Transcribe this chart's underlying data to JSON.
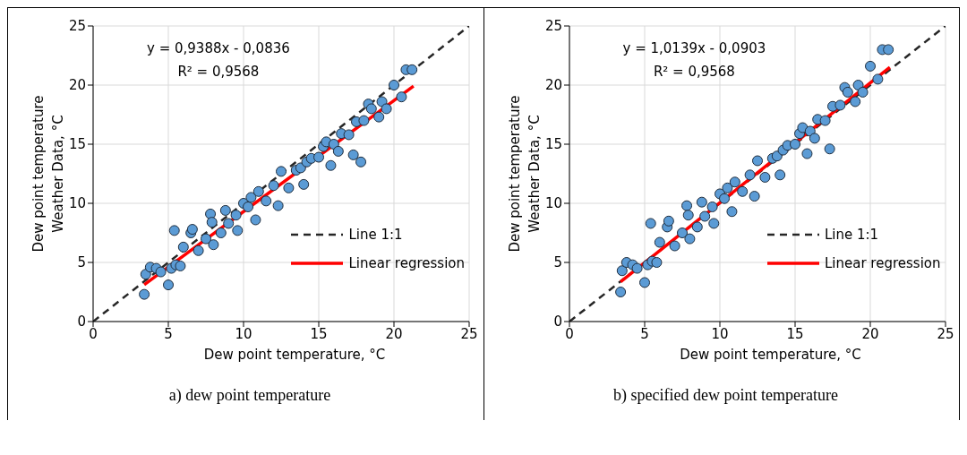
{
  "chart_data": [
    {
      "type": "scatter",
      "title": "a) dew point temperature",
      "xlabel": "Dew point temperature, °C",
      "ylabel": "Dew point temperature Weather Data, °C",
      "annotations": [
        "y = 0,9388x - 0,0836",
        "R² = 0,9568"
      ],
      "xlim": [
        0,
        25
      ],
      "ylim": [
        0,
        25
      ],
      "xticks": [
        0,
        5,
        10,
        15,
        20,
        25
      ],
      "yticks": [
        0,
        5,
        10,
        15,
        20,
        25
      ],
      "grid": true,
      "legend": "bottom right",
      "series": [
        {
          "marker": "circle",
          "color": "#5b9bd5",
          "x": [
            3.4,
            3.5,
            3.8,
            4.2,
            4.5,
            5.0,
            5.2,
            5.4,
            5.5,
            5.8,
            6.0,
            6.5,
            6.6,
            7.0,
            7.5,
            7.8,
            7.9,
            8.0,
            8.5,
            8.8,
            9.0,
            9.5,
            9.6,
            10.0,
            10.3,
            10.5,
            10.8,
            11.0,
            11.5,
            12.0,
            12.3,
            12.5,
            13.0,
            13.5,
            13.8,
            14.0,
            14.2,
            14.5,
            15.0,
            15.3,
            15.5,
            15.8,
            16.0,
            16.3,
            16.5,
            17.0,
            17.3,
            17.5,
            17.8,
            18.0,
            18.3,
            18.5,
            19.0,
            19.2,
            19.5,
            20.0,
            20.5,
            20.8,
            21.2
          ],
          "values": [
            2.3,
            4.0,
            4.6,
            4.5,
            4.2,
            3.1,
            4.5,
            7.7,
            4.8,
            4.7,
            6.3,
            7.5,
            7.8,
            6.0,
            7.0,
            9.1,
            8.4,
            6.5,
            7.5,
            9.4,
            8.3,
            9.0,
            7.7,
            10.0,
            9.7,
            10.5,
            8.6,
            11.0,
            10.2,
            11.5,
            9.8,
            12.7,
            11.3,
            12.8,
            13.0,
            11.6,
            13.5,
            13.8,
            13.9,
            14.8,
            15.2,
            13.2,
            15.0,
            14.4,
            15.9,
            15.8,
            14.1,
            16.9,
            13.5,
            17.0,
            18.4,
            18.0,
            17.3,
            18.6,
            18.0,
            20.0,
            19.0,
            21.3,
            21.3
          ]
        },
        {
          "type": "line",
          "name": "Line 1:1",
          "color": "#262626",
          "line_style": "dashed",
          "x": [
            0,
            25
          ],
          "values": [
            0,
            25
          ]
        },
        {
          "type": "line",
          "name": "Linear regression",
          "color": "#ff0000",
          "line_style": "solid",
          "x": [
            3.4,
            21.3
          ],
          "values": [
            3.11,
            19.91
          ]
        }
      ]
    },
    {
      "type": "scatter",
      "title": "b) specified dew point temperature",
      "xlabel": "Dew point temperature, °C",
      "ylabel": "Dew point temperature Weather Data, °C",
      "annotations": [
        "y = 1,0139x - 0,0903",
        "R² = 0,9568"
      ],
      "xlim": [
        0,
        25
      ],
      "ylim": [
        0,
        25
      ],
      "xticks": [
        0,
        5,
        10,
        15,
        20,
        25
      ],
      "yticks": [
        0,
        5,
        10,
        15,
        20,
        25
      ],
      "grid": true,
      "legend": "bottom right",
      "series": [
        {
          "marker": "circle",
          "color": "#5b9bd5",
          "x": [
            3.4,
            3.5,
            3.8,
            4.2,
            4.5,
            5.0,
            5.2,
            5.4,
            5.5,
            5.8,
            6.0,
            6.5,
            6.6,
            7.0,
            7.5,
            7.8,
            7.9,
            8.0,
            8.5,
            8.8,
            9.0,
            9.5,
            9.6,
            10.0,
            10.3,
            10.5,
            10.8,
            11.0,
            11.5,
            12.0,
            12.3,
            12.5,
            13.0,
            13.5,
            13.8,
            14.0,
            14.2,
            14.5,
            15.0,
            15.3,
            15.5,
            15.8,
            16.0,
            16.3,
            16.5,
            17.0,
            17.3,
            17.5,
            18.0,
            18.3,
            18.5,
            19.0,
            19.2,
            19.5,
            20.0,
            20.5,
            20.8,
            21.2
          ],
          "values": [
            2.5,
            4.3,
            5.0,
            4.8,
            4.5,
            3.3,
            4.8,
            8.3,
            5.1,
            5.0,
            6.7,
            8.0,
            8.5,
            6.4,
            7.5,
            9.8,
            9.0,
            7.0,
            8.0,
            10.1,
            8.9,
            9.7,
            8.3,
            10.8,
            10.4,
            11.3,
            9.3,
            11.8,
            11.0,
            12.4,
            10.6,
            13.6,
            12.2,
            13.8,
            14.0,
            12.4,
            14.5,
            14.9,
            15.0,
            15.9,
            16.4,
            14.2,
            16.1,
            15.5,
            17.1,
            17.0,
            14.6,
            18.2,
            18.3,
            19.8,
            19.4,
            18.6,
            20.0,
            19.4,
            21.6,
            20.5,
            23.0,
            23.0
          ]
        },
        {
          "type": "line",
          "name": "Line 1:1",
          "color": "#262626",
          "line_style": "dashed",
          "x": [
            0,
            25
          ],
          "values": [
            0,
            25
          ]
        },
        {
          "type": "line",
          "name": "Linear regression",
          "color": "#ff0000",
          "line_style": "solid",
          "x": [
            3.4,
            21.3
          ],
          "values": [
            3.36,
            21.51
          ]
        }
      ]
    }
  ]
}
